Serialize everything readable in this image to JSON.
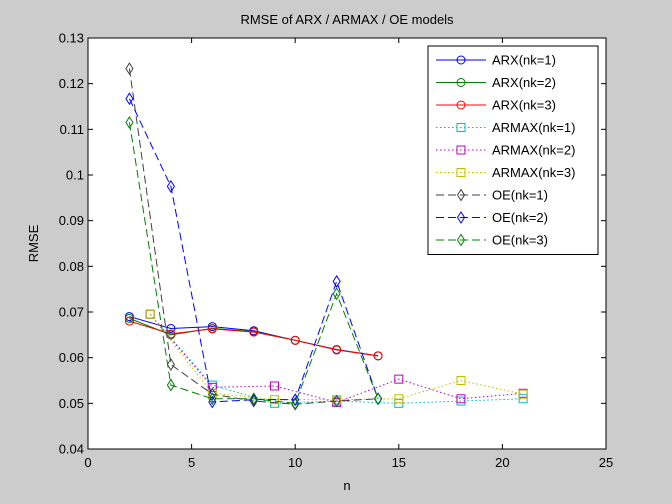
{
  "chart_data": {
    "type": "line",
    "title": "RMSE of ARX / ARMAX / OE models",
    "xlabel": "n",
    "ylabel": "RMSE",
    "xlim": [
      0,
      25
    ],
    "ylim": [
      0.04,
      0.13
    ],
    "xticks": [
      0,
      5,
      10,
      15,
      20,
      25
    ],
    "xtick_labels": [
      "0",
      "5",
      "10",
      "15",
      "20",
      "25"
    ],
    "yticks": [
      0.04,
      0.05,
      0.06,
      0.07,
      0.08,
      0.09,
      0.1,
      0.11,
      0.12,
      0.13
    ],
    "ytick_labels": [
      "0.04",
      "0.05",
      "0.06",
      "0.07",
      "0.08",
      "0.09",
      "0.1",
      "0.11",
      "0.12",
      "0.13"
    ],
    "grid": false,
    "legend_position": "top-right",
    "series": [
      {
        "name": "ARX(nk=1)",
        "color": "#0000ff",
        "dash": "solid",
        "marker": "circle",
        "x": [
          2,
          4,
          6,
          8,
          10,
          12,
          14
        ],
        "y": [
          0.069,
          0.0664,
          0.0668,
          0.0659,
          0.0638,
          0.0618,
          0.0604
        ]
      },
      {
        "name": "ARX(nk=2)",
        "color": "#008000",
        "dash": "solid",
        "marker": "circle",
        "x": [
          2,
          4,
          6,
          8,
          10,
          12,
          14
        ],
        "y": [
          0.0686,
          0.065,
          0.0664,
          0.0657,
          0.0638,
          0.0617,
          0.0604
        ]
      },
      {
        "name": "ARX(nk=3)",
        "color": "#ff0000",
        "dash": "solid",
        "marker": "circle",
        "x": [
          2,
          4,
          6,
          8,
          10,
          12,
          14
        ],
        "y": [
          0.068,
          0.0652,
          0.0663,
          0.0656,
          0.0638,
          0.0617,
          0.0604
        ]
      },
      {
        "name": "ARMAX(nk=1)",
        "color": "#00bfbf",
        "dash": "dotted",
        "marker": "square",
        "x": [
          3,
          6,
          9,
          12,
          15,
          18,
          21
        ],
        "y": [
          0.0695,
          0.054,
          0.05,
          0.0505,
          0.05,
          0.0505,
          0.051
        ]
      },
      {
        "name": "ARMAX(nk=2)",
        "color": "#bf00bf",
        "dash": "dotted",
        "marker": "square",
        "x": [
          3,
          6,
          9,
          12,
          15,
          18,
          21
        ],
        "y": [
          0.0695,
          0.0535,
          0.0538,
          0.0502,
          0.0553,
          0.051,
          0.0522
        ]
      },
      {
        "name": "ARMAX(nk=3)",
        "color": "#bfbf00",
        "dash": "dotted",
        "marker": "square",
        "x": [
          3,
          6,
          9,
          12,
          15,
          18,
          21
        ],
        "y": [
          0.0695,
          0.0522,
          0.0508,
          0.0508,
          0.051,
          0.055,
          0.052
        ]
      },
      {
        "name": "OE(nk=1)",
        "color": "#404040",
        "dash": "dashed",
        "marker": "diamond",
        "x": [
          2,
          4,
          6,
          8,
          10,
          12,
          14
        ],
        "y": [
          0.1233,
          0.0585,
          0.052,
          0.0505,
          0.0498,
          0.0505,
          0.051
        ]
      },
      {
        "name": "OE(nk=2)",
        "color": "#0000ff",
        "dash": "dashed",
        "marker": "diamond",
        "x": [
          2,
          4,
          6,
          8,
          10,
          12,
          14
        ],
        "y": [
          0.1167,
          0.0975,
          0.0503,
          0.0508,
          0.0508,
          0.0767,
          0.051
        ]
      },
      {
        "name": "OE(nk=3)",
        "color": "#008000",
        "dash": "dashed",
        "marker": "diamond",
        "x": [
          2,
          4,
          6,
          8,
          10,
          12,
          14
        ],
        "y": [
          0.1115,
          0.054,
          0.051,
          0.051,
          0.05,
          0.074,
          0.051
        ]
      }
    ]
  }
}
